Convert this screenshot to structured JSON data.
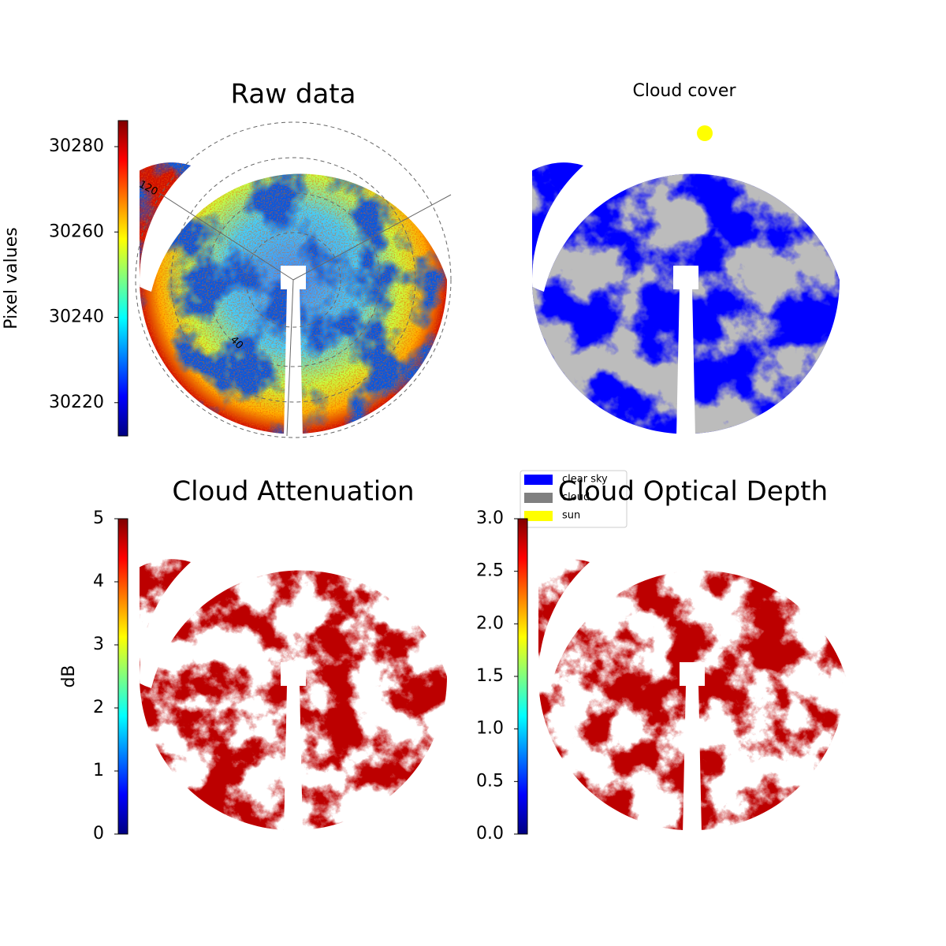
{
  "chart_data": [
    {
      "type": "image",
      "title": "Raw data",
      "colormap": "jet",
      "colorbar": {
        "label": "Pixel values",
        "ylim": [
          30212.2,
          30286.1
        ],
        "yticks": [
          30220,
          30240,
          30260,
          30280
        ]
      },
      "annotations": [
        "120",
        "40"
      ]
    },
    {
      "type": "image",
      "title": "Cloud cover",
      "legend": [
        {
          "name": "clear sky",
          "color": "#0000ff"
        },
        {
          "name": "cloud",
          "color": "#808080"
        },
        {
          "name": "sun",
          "color": "#ffff00"
        }
      ]
    },
    {
      "type": "image",
      "title": "Cloud Attenuation",
      "colormap": "jet",
      "colorbar": {
        "label": "dB",
        "ylim": [
          0,
          5
        ],
        "yticks": [
          0,
          1,
          2,
          3,
          4,
          5
        ]
      }
    },
    {
      "type": "image",
      "title": "Cloud Optical Depth",
      "colormap": "jet",
      "colorbar": {
        "ylim": [
          0,
          3
        ],
        "yticks": [
          {
            "value": 0,
            "label": "0.0"
          },
          0.5,
          {
            "value": 1,
            "label": "1.0"
          },
          1.5,
          {
            "value": 2,
            "label": "2.0"
          },
          2.5,
          {
            "value": 3,
            "label": "3.0"
          }
        ]
      }
    }
  ]
}
